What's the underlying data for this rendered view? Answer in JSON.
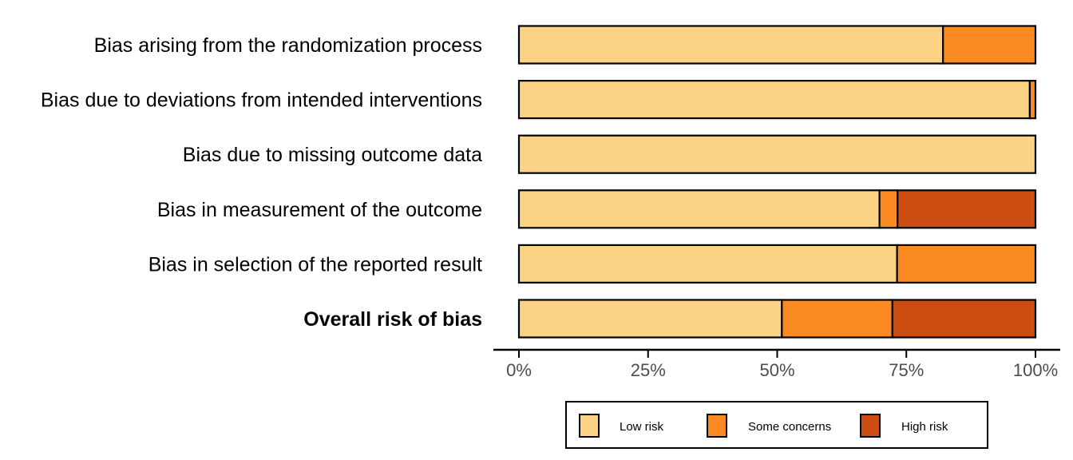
{
  "chart_data": {
    "type": "bar",
    "orientation": "horizontal",
    "stacked": true,
    "categories": [
      "Bias arising from the randomization process",
      "Bias due to deviations from intended interventions",
      "Bias due to missing outcome data",
      "Bias in measurement of the outcome",
      "Bias in selection of the reported result",
      "Overall risk of bias"
    ],
    "bold_category": "Overall risk of bias",
    "series": [
      {
        "name": "Low risk",
        "color": "#fcd384",
        "values": [
          82.1,
          98.9,
          100,
          69.8,
          73.2,
          50.9
        ]
      },
      {
        "name": "Some concerns",
        "color": "#fb8a23",
        "values": [
          17.9,
          1.1,
          0,
          3.5,
          26.8,
          21.4
        ]
      },
      {
        "name": "High risk",
        "color": "#cd4c11",
        "values": [
          0,
          0,
          0,
          26.7,
          0,
          27.7
        ]
      }
    ],
    "xlim": [
      0,
      100
    ],
    "x_ticks": [
      "0%",
      "25%",
      "50%",
      "75%",
      "100%"
    ],
    "legend_position": "bottom",
    "grid": false
  }
}
